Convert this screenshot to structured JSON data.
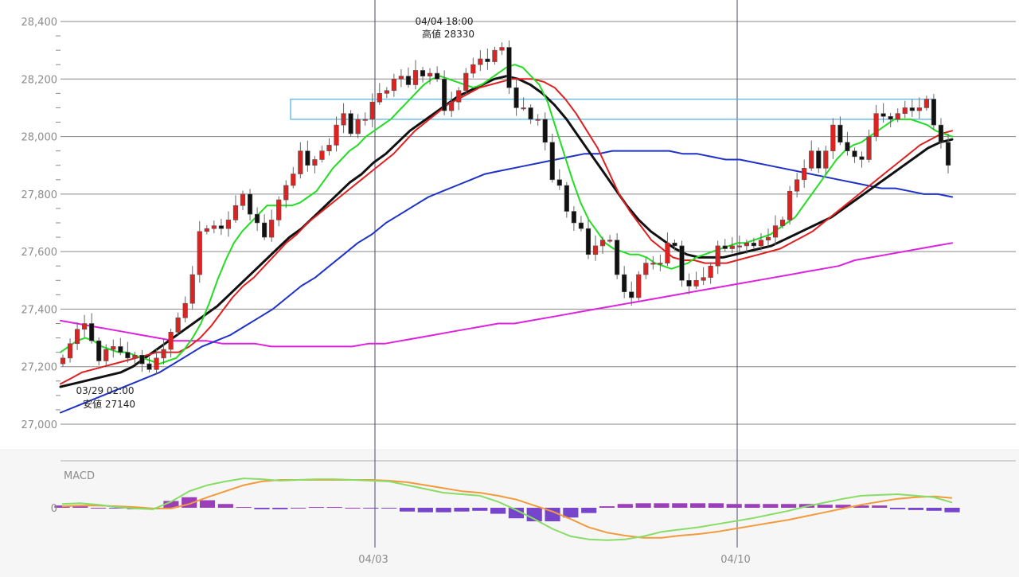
{
  "chart_data": {
    "type": "candlestick",
    "price_axis": {
      "ylim": [
        27000,
        28400
      ],
      "ticks": [
        "28,400",
        "28,200",
        "28,000",
        "27,800",
        "27,600",
        "27,400",
        "27,200",
        "27,000"
      ],
      "tick_values": [
        28400,
        28200,
        28000,
        27800,
        27600,
        27400,
        27200,
        27000
      ]
    },
    "x_labels": [
      "04/03",
      "04/10"
    ],
    "annotations": [
      {
        "line1": "04/04 18:00",
        "line2": "高値 28330",
        "value": 28330
      },
      {
        "line1": "03/29 02:00",
        "line2": "安値 27140",
        "value": 27140
      }
    ],
    "zone": {
      "low": 28060,
      "high": 28130
    },
    "colors": {
      "up": "#dd2222",
      "down": "#111111",
      "ma_short": "#22dd22",
      "ma_mid": "#e02020",
      "ma_long": "#111111",
      "ma_200": "#1e32c8",
      "ma_400": "#dd22dd",
      "zone": "#5ab4e6",
      "macd": "#88dd66",
      "signal": "#f39a3c",
      "hist": "#7744cc"
    },
    "candle_closes": [
      27230,
      27280,
      27330,
      27350,
      27290,
      27220,
      27260,
      27270,
      27250,
      27230,
      27240,
      27210,
      27190,
      27230,
      27260,
      27320,
      27370,
      27420,
      27520,
      27670,
      27680,
      27690,
      27680,
      27710,
      27760,
      27800,
      27730,
      27700,
      27650,
      27710,
      27780,
      27830,
      27870,
      27950,
      27900,
      27920,
      27950,
      27970,
      28040,
      28080,
      28010,
      28060,
      28060,
      28120,
      28150,
      28160,
      28200,
      28210,
      28180,
      28230,
      28210,
      28220,
      28200,
      28090,
      28120,
      28160,
      28220,
      28250,
      28270,
      28260,
      28300,
      28310,
      28170,
      28100,
      28100,
      28060,
      28060,
      27980,
      27850,
      27830,
      27740,
      27700,
      27680,
      27590,
      27620,
      27640,
      27640,
      27520,
      27460,
      27440,
      27520,
      27560,
      27560,
      27560,
      27630,
      27620,
      27500,
      27480,
      27500,
      27510,
      27550,
      27620,
      27610,
      27620,
      27620,
      27630,
      27620,
      27640,
      27650,
      27690,
      27710,
      27810,
      27850,
      27890,
      27950,
      27890,
      27950,
      28040,
      27980,
      27950,
      27930,
      27920,
      28000,
      28080,
      28070,
      28060,
      28080,
      28100,
      28090,
      28100,
      28130,
      28040,
      27980,
      27900
    ],
    "ma_short": [
      27250,
      27270,
      27290,
      27300,
      27290,
      27270,
      27260,
      27250,
      27250,
      27240,
      27230,
      27220,
      27210,
      27220,
      27230,
      27260,
      27300,
      27350,
      27420,
      27500,
      27570,
      27630,
      27670,
      27700,
      27730,
      27760,
      27760,
      27760,
      27760,
      27770,
      27790,
      27810,
      27850,
      27890,
      27920,
      27950,
      27970,
      28000,
      28020,
      28040,
      28060,
      28090,
      28120,
      28150,
      28180,
      28200,
      28210,
      28200,
      28190,
      28180,
      28170,
      28180,
      28200,
      28220,
      28240,
      28250,
      28240,
      28210,
      28180,
      28120,
      28030,
      27940,
      27850,
      27770,
      27710,
      27670,
      27630,
      27610,
      27600,
      27590,
      27590,
      27580,
      27560,
      27550,
      27540,
      27550,
      27560,
      27580,
      27590,
      27600,
      27610,
      27620,
      27630,
      27630,
      27640,
      27650,
      27660,
      27680,
      27700,
      27720,
      27760,
      27800,
      27840,
      27880,
      27920,
      27950,
      27970,
      27980,
      28000,
      28020,
      28040,
      28060,
      28060,
      28060,
      28050,
      28040,
      28020,
      28010,
      28000
    ],
    "ma_mid": [
      27140,
      27160,
      27180,
      27190,
      27200,
      27210,
      27220,
      27230,
      27240,
      27250,
      27250,
      27250,
      27270,
      27300,
      27340,
      27390,
      27440,
      27480,
      27510,
      27550,
      27590,
      27630,
      27660,
      27700,
      27730,
      27760,
      27790,
      27820,
      27850,
      27880,
      27910,
      27940,
      27980,
      28020,
      28050,
      28080,
      28110,
      28130,
      28150,
      28170,
      28180,
      28190,
      28200,
      28200,
      28200,
      28190,
      28170,
      28130,
      28080,
      28020,
      27960,
      27880,
      27800,
      27740,
      27690,
      27640,
      27610,
      27580,
      27570,
      27570,
      27560,
      27560,
      27560,
      27570,
      27580,
      27590,
      27600,
      27610,
      27630,
      27650,
      27670,
      27700,
      27730,
      27760,
      27790,
      27820,
      27850,
      27880,
      27910,
      27940,
      27970,
      27990,
      28010,
      28020
    ],
    "ma_long": [
      27130,
      27140,
      27150,
      27160,
      27170,
      27180,
      27200,
      27230,
      27260,
      27290,
      27320,
      27350,
      27380,
      27410,
      27450,
      27490,
      27530,
      27570,
      27610,
      27650,
      27680,
      27720,
      27760,
      27800,
      27840,
      27870,
      27910,
      27940,
      27980,
      28020,
      28050,
      28080,
      28110,
      28140,
      28160,
      28180,
      28200,
      28210,
      28200,
      28180,
      28150,
      28110,
      28060,
      28000,
      27940,
      27880,
      27820,
      27760,
      27710,
      27670,
      27640,
      27610,
      27590,
      27580,
      27580,
      27580,
      27590,
      27600,
      27610,
      27620,
      27640,
      27660,
      27680,
      27700,
      27720,
      27750,
      27780,
      27810,
      27840,
      27870,
      27900,
      27930,
      27960,
      27980,
      27990
    ],
    "ma_200": [
      27040,
      27060,
      27080,
      27100,
      27120,
      27140,
      27160,
      27180,
      27210,
      27240,
      27270,
      27290,
      27310,
      27340,
      27370,
      27400,
      27440,
      27480,
      27510,
      27550,
      27590,
      27630,
      27660,
      27700,
      27730,
      27760,
      27790,
      27810,
      27830,
      27850,
      27870,
      27880,
      27890,
      27900,
      27910,
      27920,
      27930,
      27940,
      27940,
      27950,
      27950,
      27950,
      27950,
      27950,
      27940,
      27940,
      27930,
      27920,
      27920,
      27910,
      27900,
      27890,
      27880,
      27870,
      27860,
      27850,
      27840,
      27830,
      27820,
      27820,
      27810,
      27800,
      27800,
      27790
    ],
    "ma_400": [
      27360,
      27350,
      27340,
      27330,
      27320,
      27310,
      27300,
      27290,
      27290,
      27290,
      27280,
      27280,
      27280,
      27270,
      27270,
      27270,
      27270,
      27270,
      27270,
      27280,
      27280,
      27290,
      27300,
      27310,
      27320,
      27330,
      27340,
      27350,
      27350,
      27360,
      27370,
      27380,
      27390,
      27400,
      27410,
      27420,
      27430,
      27440,
      27450,
      27460,
      27470,
      27480,
      27490,
      27500,
      27510,
      27520,
      27530,
      27540,
      27550,
      27570,
      27580,
      27590,
      27600,
      27610,
      27620,
      27630
    ],
    "macd_panel": {
      "label": "MACD",
      "zero_label": "0",
      "macd": [
        5,
        6,
        4,
        1,
        -1,
        -2,
        8,
        22,
        30,
        35,
        39,
        38,
        36,
        37,
        38,
        38,
        37,
        36,
        35,
        30,
        25,
        20,
        18,
        16,
        8,
        -3,
        -15,
        -28,
        -38,
        -42,
        -43,
        -42,
        -38,
        -32,
        -29,
        -26,
        -22,
        -18,
        -14,
        -9,
        -4,
        2,
        7,
        12,
        16,
        17,
        18,
        16,
        14,
        7
      ],
      "signal": [
        2,
        3,
        3,
        2,
        1,
        -1,
        -1,
        5,
        14,
        22,
        30,
        35,
        37,
        37,
        37,
        37,
        37,
        37,
        36,
        34,
        30,
        26,
        22,
        20,
        16,
        11,
        3,
        -5,
        -15,
        -26,
        -33,
        -37,
        -40,
        -40,
        -37,
        -35,
        -32,
        -28,
        -24,
        -20,
        -16,
        -11,
        -6,
        -1,
        4,
        8,
        12,
        14,
        15,
        13
      ],
      "hist": [
        3,
        2,
        0,
        -1,
        -2,
        -2,
        9,
        14,
        10,
        5,
        1,
        -2,
        -2,
        0,
        1,
        1,
        0,
        -1,
        -1,
        -5,
        -6,
        -6,
        -5,
        -4,
        -8,
        -14,
        -18,
        -18,
        -13,
        -7,
        2,
        5,
        6,
        6,
        6,
        6,
        6,
        5,
        5,
        5,
        5,
        5,
        4,
        4,
        3,
        3,
        -2,
        -3,
        -4,
        -6
      ],
      "ylim": [
        -55,
        55
      ]
    }
  }
}
